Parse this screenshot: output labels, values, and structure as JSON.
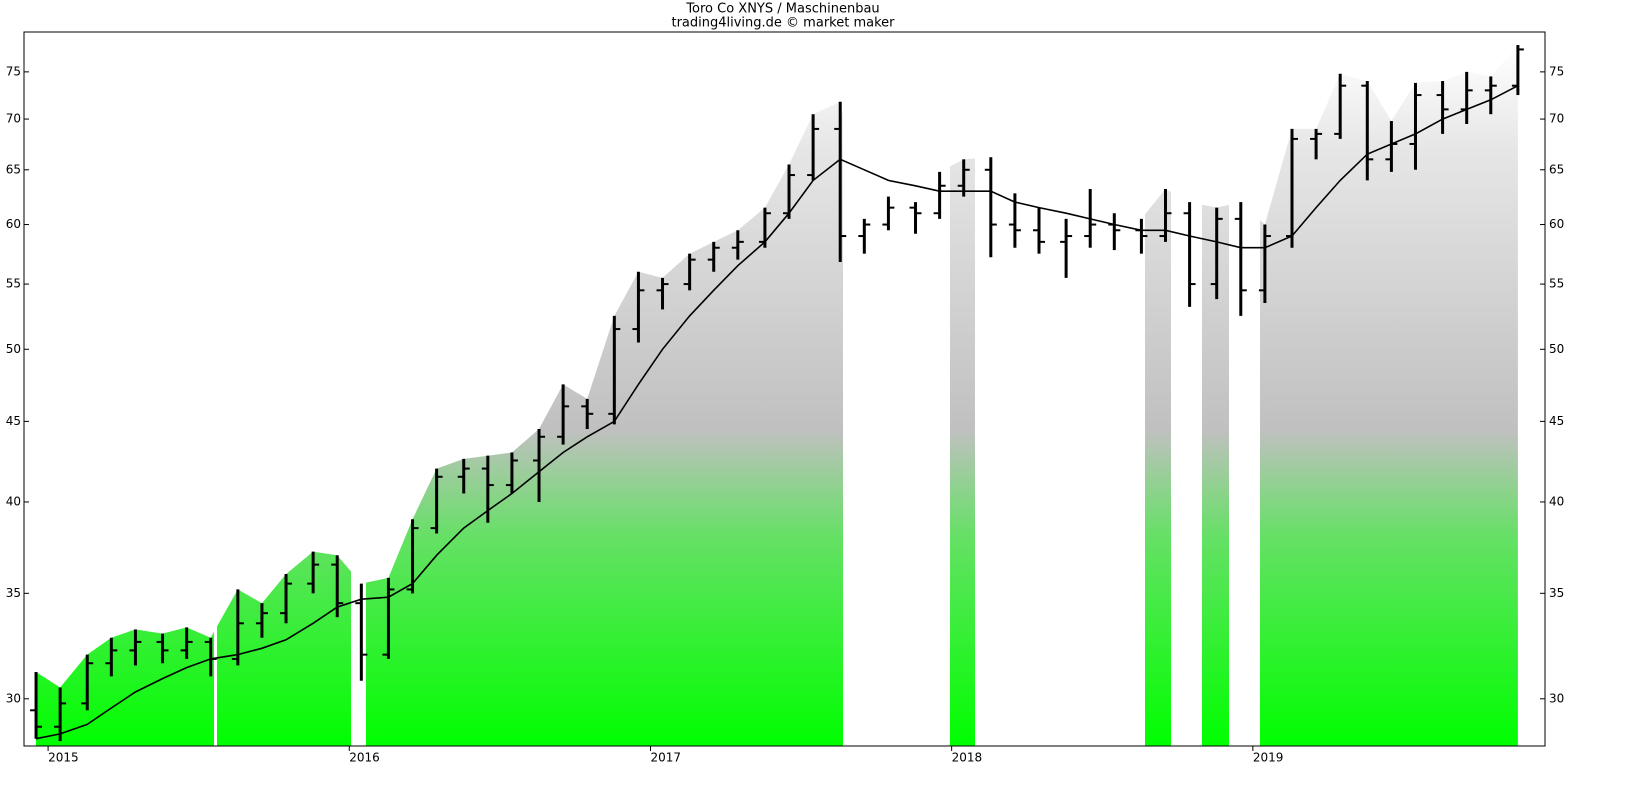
{
  "chart_data": {
    "type": "ohlc",
    "title": "Toro Co XNYS / Maschinenbau",
    "subtitle": "trading4living.de © market maker",
    "x": [
      2014.96,
      2015.04,
      2015.13,
      2015.21,
      2015.29,
      2015.38,
      2015.46,
      2015.54,
      2015.63,
      2015.71,
      2015.79,
      2015.88,
      2015.96,
      2016.04,
      2016.13,
      2016.21,
      2016.29,
      2016.38,
      2016.46,
      2016.54,
      2016.63,
      2016.71,
      2016.79,
      2016.88,
      2016.96,
      2017.04,
      2017.13,
      2017.21,
      2017.29,
      2017.38,
      2017.46,
      2017.54,
      2017.63,
      2017.71,
      2017.79,
      2017.88,
      2017.96,
      2018.04,
      2018.13,
      2018.21,
      2018.29,
      2018.38,
      2018.46,
      2018.54,
      2018.63,
      2018.71,
      2018.79,
      2018.88,
      2018.96,
      2019.04,
      2019.13,
      2019.21,
      2019.29,
      2019.38,
      2019.46,
      2019.54,
      2019.63,
      2019.71,
      2019.79,
      2019.88
    ],
    "open": [
      29.5,
      28.8,
      29.8,
      31.6,
      32.2,
      32.6,
      32.2,
      32.6,
      31.8,
      33.5,
      34.0,
      35.5,
      36.5,
      34.5,
      32.0,
      35.2,
      38.5,
      41.5,
      42.0,
      41.0,
      42.5,
      44.0,
      46.0,
      45.5,
      51.5,
      54.5,
      55.0,
      57.0,
      58.0,
      58.5,
      61.0,
      64.5,
      69.0,
      59.0,
      60.0,
      61.5,
      61.0,
      63.5,
      65.0,
      60.0,
      59.5,
      58.5,
      59.0,
      60.0,
      59.5,
      59.0,
      61.0,
      55.0,
      60.5,
      54.5,
      59.0,
      68.0,
      68.5,
      73.5,
      66.0,
      67.5,
      72.5,
      71.0,
      73.0,
      73.5
    ],
    "high": [
      31.2,
      30.5,
      32.0,
      32.8,
      33.2,
      33.0,
      33.3,
      32.8,
      35.2,
      34.5,
      36.0,
      37.2,
      37.0,
      35.5,
      35.8,
      39.0,
      42.0,
      42.6,
      42.8,
      43.0,
      44.5,
      47.5,
      46.5,
      52.5,
      56.0,
      55.5,
      57.5,
      58.5,
      59.5,
      61.5,
      65.5,
      70.5,
      71.8,
      60.5,
      62.5,
      62.0,
      64.8,
      66.0,
      66.2,
      62.8,
      61.5,
      60.5,
      63.2,
      61.0,
      60.5,
      63.2,
      62.0,
      61.5,
      62.0,
      60.0,
      69.0,
      69.0,
      74.8,
      74.0,
      69.8,
      73.8,
      74.0,
      75.0,
      74.5,
      78.0
    ],
    "low": [
      28.3,
      28.2,
      29.5,
      31.0,
      31.5,
      31.6,
      31.8,
      31.0,
      31.5,
      32.8,
      33.5,
      35.0,
      33.8,
      30.8,
      31.8,
      35.0,
      38.2,
      40.5,
      38.8,
      40.5,
      40.0,
      43.5,
      44.5,
      44.8,
      50.5,
      53.0,
      54.5,
      56.0,
      57.0,
      58.0,
      60.5,
      64.0,
      56.8,
      57.5,
      59.5,
      59.2,
      60.5,
      62.5,
      57.2,
      58.0,
      57.5,
      55.5,
      58.0,
      57.8,
      57.5,
      58.5,
      53.2,
      53.8,
      52.5,
      53.5,
      58.0,
      66.0,
      68.0,
      64.0,
      64.8,
      65.0,
      68.5,
      69.5,
      70.5,
      72.5
    ],
    "close": [
      28.8,
      29.8,
      31.6,
      32.2,
      32.6,
      32.2,
      32.6,
      31.8,
      33.5,
      34.0,
      35.5,
      36.5,
      34.5,
      32.0,
      35.2,
      38.5,
      41.5,
      42.0,
      41.0,
      42.5,
      44.0,
      46.0,
      45.5,
      51.5,
      54.5,
      55.0,
      57.0,
      58.0,
      58.5,
      61.0,
      64.5,
      69.0,
      59.0,
      60.0,
      61.5,
      61.0,
      63.5,
      65.0,
      60.0,
      59.5,
      58.5,
      59.0,
      60.0,
      59.5,
      59.0,
      61.0,
      55.0,
      60.5,
      54.5,
      59.0,
      68.0,
      68.5,
      73.5,
      66.0,
      67.5,
      72.5,
      71.0,
      73.0,
      73.5,
      77.5
    ],
    "ma": [
      28.3,
      28.5,
      28.9,
      29.6,
      30.3,
      30.9,
      31.4,
      31.8,
      32.0,
      32.3,
      32.7,
      33.5,
      34.3,
      34.7,
      34.8,
      35.5,
      37.0,
      38.5,
      39.5,
      40.5,
      41.8,
      43.0,
      44.0,
      45.0,
      47.5,
      50.0,
      52.5,
      54.5,
      56.5,
      58.5,
      61.0,
      64.0,
      66.0,
      65.0,
      64.0,
      63.5,
      63.0,
      63.0,
      63.0,
      62.0,
      61.5,
      61.0,
      60.5,
      60.0,
      59.5,
      59.5,
      59.0,
      58.5,
      58.0,
      58.0,
      59.0,
      61.5,
      64.0,
      66.5,
      67.5,
      68.5,
      70.0,
      71.0,
      72.0,
      73.5
    ],
    "color": "#000000",
    "xlim": [
      2014.92,
      2019.97
    ],
    "xticks": [
      2015,
      2016,
      2017,
      2018,
      2019
    ],
    "ylim": [
      28,
      79.5
    ],
    "yticks": [
      30,
      35,
      40,
      45,
      50,
      55,
      60,
      65,
      70,
      75
    ],
    "log_y": true
  }
}
